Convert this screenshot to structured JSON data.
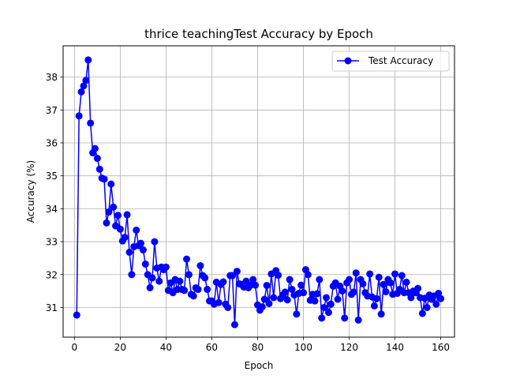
{
  "chart_data": {
    "type": "line",
    "title": "thrice teachingTest Accuracy by Epoch",
    "xlabel": "Epoch",
    "ylabel": "Accuracy (%)",
    "xlim": [
      -4.95,
      166
    ],
    "ylim": [
      30.1,
      38.95
    ],
    "xticks": [
      0,
      20,
      40,
      60,
      80,
      100,
      120,
      140,
      160
    ],
    "yticks": [
      31,
      32,
      33,
      34,
      35,
      36,
      37,
      38
    ],
    "grid": true,
    "legend_position": "top-right",
    "colors": {
      "series": "#0000ff",
      "grid": "#b0b0b0"
    },
    "series": [
      {
        "name": "Test Accuracy",
        "x": [
          1,
          2,
          3,
          4,
          5,
          6,
          7,
          8,
          9,
          10,
          11,
          12,
          13,
          14,
          15,
          16,
          17,
          18,
          19,
          20,
          21,
          22,
          23,
          24,
          25,
          26,
          27,
          28,
          29,
          30,
          31,
          32,
          33,
          34,
          35,
          36,
          37,
          38,
          39,
          40,
          41,
          42,
          43,
          44,
          45,
          46,
          47,
          48,
          49,
          50,
          51,
          52,
          53,
          54,
          55,
          56,
          57,
          58,
          59,
          60,
          61,
          62,
          63,
          64,
          65,
          66,
          67,
          68,
          69,
          70,
          71,
          72,
          73,
          74,
          75,
          76,
          77,
          78,
          79,
          80,
          81,
          82,
          83,
          84,
          85,
          86,
          87,
          88,
          89,
          90,
          91,
          92,
          93,
          94,
          95,
          96,
          97,
          98,
          99,
          100,
          101,
          102,
          103,
          104,
          105,
          106,
          107,
          108,
          109,
          110,
          111,
          112,
          113,
          114,
          115,
          116,
          117,
          118,
          119,
          120,
          121,
          122,
          123,
          124,
          125,
          126,
          127,
          128,
          129,
          130,
          131,
          132,
          133,
          134,
          135,
          136,
          137,
          138,
          139,
          140,
          141,
          142,
          143,
          144,
          145,
          146,
          147,
          148,
          149,
          150,
          151,
          152,
          153,
          154,
          155,
          156,
          157,
          158,
          159,
          160
        ],
        "values": [
          30.77,
          36.82,
          37.55,
          37.73,
          37.9,
          38.52,
          36.6,
          35.7,
          35.83,
          35.53,
          35.2,
          34.93,
          34.9,
          33.57,
          33.9,
          34.75,
          34.05,
          33.48,
          33.8,
          33.38,
          33.02,
          33.13,
          33.82,
          32.68,
          32.0,
          32.85,
          33.35,
          32.88,
          32.95,
          32.75,
          32.32,
          32.0,
          31.6,
          31.9,
          33.0,
          32.2,
          31.8,
          32.23,
          32.15,
          32.23,
          31.52,
          31.75,
          31.45,
          31.85,
          31.55,
          31.8,
          31.55,
          31.52,
          32.47,
          32.0,
          31.4,
          31.35,
          31.6,
          31.55,
          32.27,
          31.97,
          31.9,
          31.55,
          31.2,
          31.2,
          31.1,
          31.77,
          31.15,
          31.7,
          31.78,
          31.1,
          31.0,
          31.97,
          31.97,
          30.48,
          32.1,
          31.72,
          31.7,
          31.62,
          31.8,
          31.6,
          31.68,
          31.85,
          31.68,
          31.08,
          30.92,
          31.02,
          31.25,
          31.67,
          31.12,
          32.02,
          31.3,
          32.12,
          31.98,
          31.27,
          31.38,
          31.47,
          31.23,
          31.85,
          31.55,
          31.38,
          30.8,
          31.43,
          31.68,
          31.45,
          32.15,
          32.0,
          31.22,
          31.4,
          31.2,
          31.42,
          31.85,
          30.68,
          31.0,
          31.3,
          30.85,
          31.1,
          31.65,
          31.75,
          31.25,
          31.65,
          31.5,
          30.68,
          31.75,
          31.85,
          31.4,
          31.47,
          32.05,
          30.62,
          31.85,
          31.72,
          31.45,
          31.35,
          32.02,
          31.32,
          31.05,
          31.27,
          31.92,
          30.8,
          31.7,
          31.48,
          31.85,
          31.75,
          31.4,
          32.02,
          31.43,
          31.55,
          31.97,
          31.45,
          31.77,
          31.45,
          31.3,
          31.5,
          31.45,
          31.58,
          31.3,
          30.82,
          31.28,
          31.0,
          31.38,
          31.25,
          31.35,
          31.1,
          31.43,
          31.27
        ]
      }
    ]
  }
}
